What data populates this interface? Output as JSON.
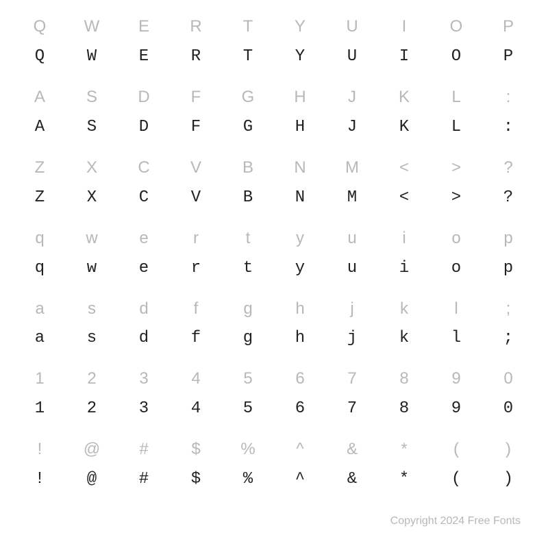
{
  "rows": [
    {
      "light": [
        "Q",
        "W",
        "E",
        "R",
        "T",
        "Y",
        "U",
        "I",
        "O",
        "P"
      ],
      "dark": [
        "Q",
        "W",
        "E",
        "R",
        "T",
        "Y",
        "U",
        "I",
        "O",
        "P"
      ]
    },
    {
      "light": [
        "A",
        "S",
        "D",
        "F",
        "G",
        "H",
        "J",
        "K",
        "L",
        ":"
      ],
      "dark": [
        "A",
        "S",
        "D",
        "F",
        "G",
        "H",
        "J",
        "K",
        "L",
        ":"
      ]
    },
    {
      "light": [
        "Z",
        "X",
        "C",
        "V",
        "B",
        "N",
        "M",
        "<",
        ">",
        "?"
      ],
      "dark": [
        "Z",
        "X",
        "C",
        "V",
        "B",
        "N",
        "M",
        "<",
        ">",
        "?"
      ]
    },
    {
      "light": [
        "q",
        "w",
        "e",
        "r",
        "t",
        "y",
        "u",
        "i",
        "o",
        "p"
      ],
      "dark": [
        "q",
        "w",
        "e",
        "r",
        "t",
        "y",
        "u",
        "i",
        "o",
        "p"
      ]
    },
    {
      "light": [
        "a",
        "s",
        "d",
        "f",
        "g",
        "h",
        "j",
        "k",
        "l",
        ";"
      ],
      "dark": [
        "a",
        "s",
        "d",
        "f",
        "g",
        "h",
        "j",
        "k",
        "l",
        ";"
      ]
    },
    {
      "light": [
        "1",
        "2",
        "3",
        "4",
        "5",
        "6",
        "7",
        "8",
        "9",
        "0"
      ],
      "dark": [
        "1",
        "2",
        "3",
        "4",
        "5",
        "6",
        "7",
        "8",
        "9",
        "0"
      ]
    },
    {
      "light": [
        "!",
        "@",
        "#",
        "$",
        "%",
        "^",
        "&",
        "*",
        "(",
        ")"
      ],
      "dark": [
        "!",
        "@",
        "#",
        "$",
        "%",
        "^",
        "&",
        "*",
        "(",
        ")"
      ]
    }
  ],
  "footer": "Copyright 2024 Free Fonts",
  "style": {
    "light_color": "#b8b8b8",
    "dark_color": "#222222",
    "background": "#ffffff",
    "cell_fontsize": 24,
    "footer_fontsize": 16,
    "columns": 10,
    "row_pairs": 7
  }
}
